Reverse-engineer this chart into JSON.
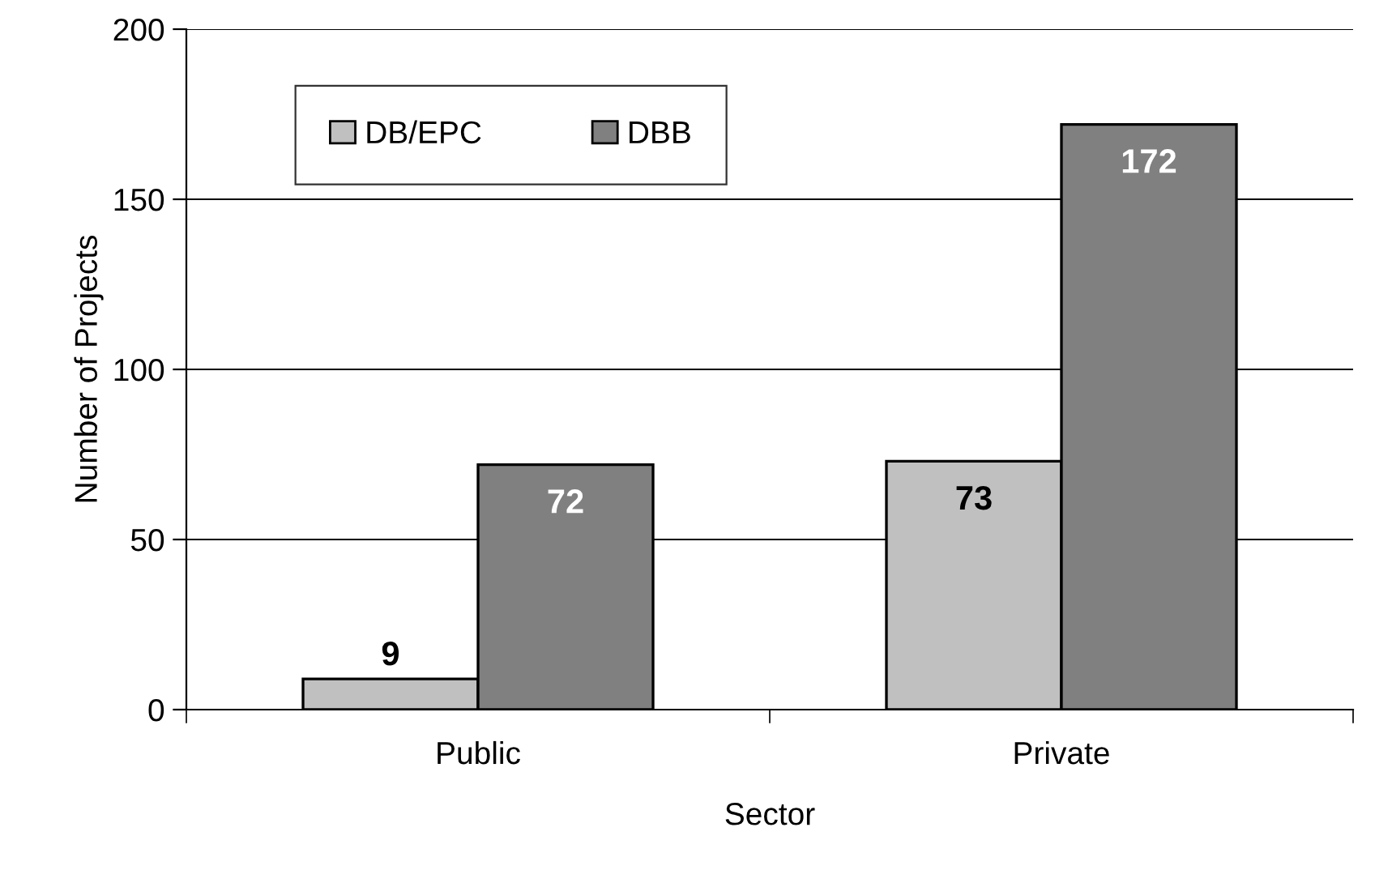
{
  "chart_data": {
    "type": "bar",
    "xlabel": "Sector",
    "ylabel": "Number of Projects",
    "categories": [
      "Public",
      "Private"
    ],
    "series": [
      {
        "name": "DB/EPC",
        "color": "#c0c0c0",
        "values": [
          9,
          73
        ]
      },
      {
        "name": "DBB",
        "color": "#808080",
        "values": [
          72,
          172
        ]
      }
    ],
    "ylim": [
      0,
      200
    ],
    "yticks": [
      0,
      50,
      100,
      150,
      200
    ],
    "grid": "y",
    "legend": "top left",
    "data_labels": true
  }
}
